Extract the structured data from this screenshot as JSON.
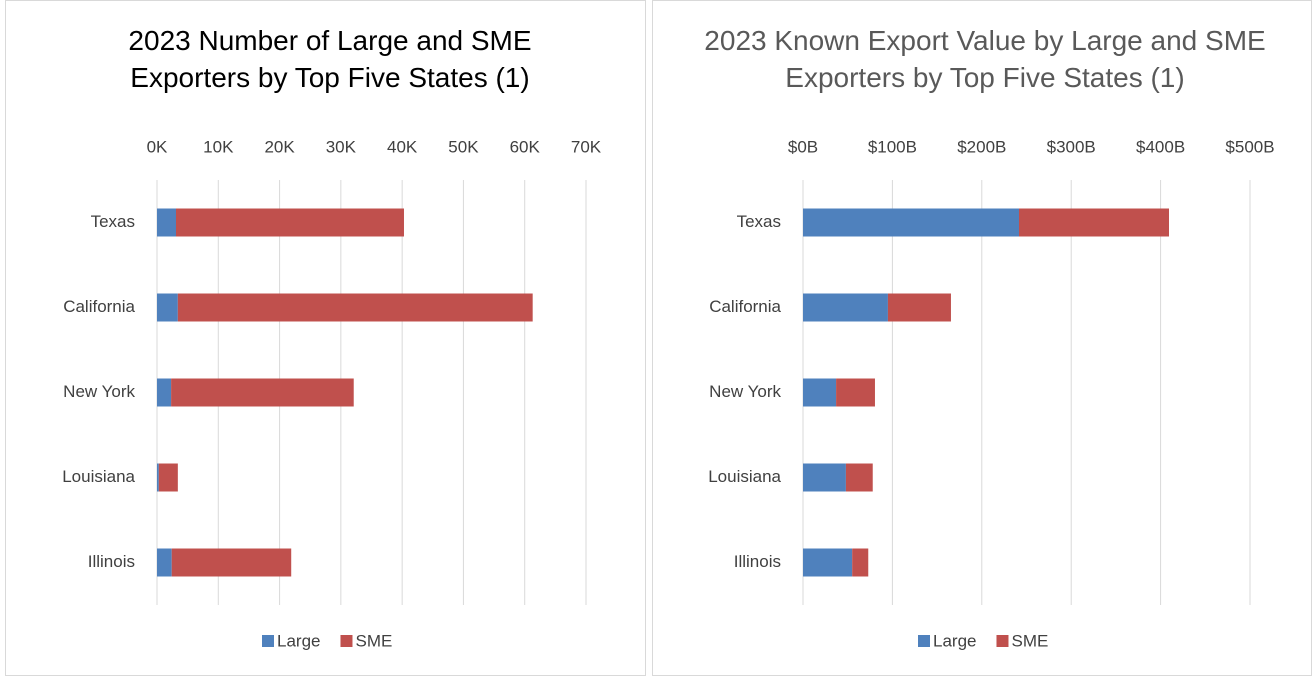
{
  "chart_data": [
    {
      "type": "stacked-bar-horizontal",
      "title": "2023 Number of Large and SME Exporters by Top Five States (1)",
      "categories": [
        "Texas",
        "California",
        "New York",
        "Louisiana",
        "Illinois"
      ],
      "series": [
        {
          "name": "Large",
          "color": "#4f81bd",
          "values": [
            3100,
            3400,
            2300,
            300,
            2400
          ]
        },
        {
          "name": "SME",
          "color": "#c0504d",
          "values": [
            37200,
            57900,
            29800,
            3100,
            19500
          ]
        }
      ],
      "xlim": [
        0,
        70000
      ],
      "xticks": [
        {
          "value": 0,
          "label": "0K"
        },
        {
          "value": 10000,
          "label": "10K"
        },
        {
          "value": 20000,
          "label": "20K"
        },
        {
          "value": 30000,
          "label": "30K"
        },
        {
          "value": 40000,
          "label": "40K"
        },
        {
          "value": 50000,
          "label": "50K"
        },
        {
          "value": 60000,
          "label": "60K"
        },
        {
          "value": 70000,
          "label": "70K"
        }
      ],
      "grid": true,
      "legend": "bottom"
    },
    {
      "type": "stacked-bar-horizontal",
      "title": "2023 Known Export Value by Large and SME Exporters by Top Five States (1)",
      "categories": [
        "Texas",
        "California",
        "New York",
        "Louisiana",
        "Illinois"
      ],
      "series": [
        {
          "name": "Large",
          "color": "#4f81bd",
          "values": [
            241.6,
            95,
            37,
            48,
            55
          ]
        },
        {
          "name": "SME",
          "color": "#c0504d",
          "values": [
            167.8,
            70.5,
            43.5,
            30,
            18
          ]
        }
      ],
      "xlim": [
        0,
        500
      ],
      "xticks": [
        {
          "value": 0,
          "label": "$0B"
        },
        {
          "value": 100,
          "label": "$100B"
        },
        {
          "value": 200,
          "label": "$200B"
        },
        {
          "value": 300,
          "label": "$300B"
        },
        {
          "value": 400,
          "label": "$400B"
        },
        {
          "value": 500,
          "label": "$500B"
        }
      ],
      "grid": true,
      "legend": "bottom"
    }
  ]
}
